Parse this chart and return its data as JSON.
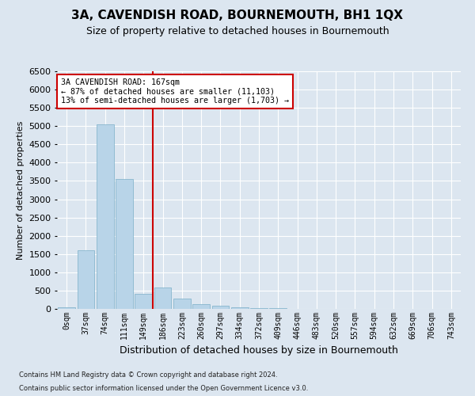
{
  "title": "3A, CAVENDISH ROAD, BOURNEMOUTH, BH1 1QX",
  "subtitle": "Size of property relative to detached houses in Bournemouth",
  "xlabel": "Distribution of detached houses by size in Bournemouth",
  "ylabel": "Number of detached properties",
  "footer_line1": "Contains HM Land Registry data © Crown copyright and database right 2024.",
  "footer_line2": "Contains public sector information licensed under the Open Government Licence v3.0.",
  "bar_labels": [
    "0sqm",
    "37sqm",
    "74sqm",
    "111sqm",
    "149sqm",
    "186sqm",
    "223sqm",
    "260sqm",
    "297sqm",
    "334sqm",
    "372sqm",
    "409sqm",
    "446sqm",
    "483sqm",
    "520sqm",
    "557sqm",
    "594sqm",
    "632sqm",
    "669sqm",
    "706sqm",
    "743sqm"
  ],
  "bar_values": [
    50,
    1600,
    5050,
    3550,
    420,
    580,
    280,
    130,
    80,
    50,
    30,
    20,
    10,
    0,
    0,
    0,
    0,
    0,
    0,
    0,
    0
  ],
  "bar_color": "#b8d4e8",
  "bar_edgecolor": "#7aafc8",
  "ylim": [
    0,
    6500
  ],
  "yticks": [
    0,
    500,
    1000,
    1500,
    2000,
    2500,
    3000,
    3500,
    4000,
    4500,
    5000,
    5500,
    6000,
    6500
  ],
  "vline_color": "#cc0000",
  "annotation_text": "3A CAVENDISH ROAD: 167sqm\n← 87% of detached houses are smaller (11,103)\n13% of semi-detached houses are larger (1,703) →",
  "annotation_box_color": "#ffffff",
  "annotation_box_edgecolor": "#cc0000",
  "background_color": "#dce6f0",
  "grid_color": "#ffffff",
  "title_fontsize": 11,
  "subtitle_fontsize": 9,
  "ylabel_fontsize": 8,
  "xlabel_fontsize": 9,
  "ytick_fontsize": 8,
  "xtick_fontsize": 7
}
